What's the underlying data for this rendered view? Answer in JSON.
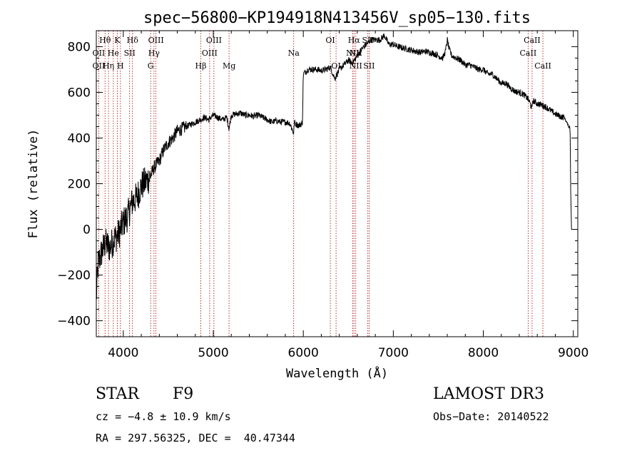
{
  "chart_data": {
    "type": "line",
    "title": "spec−56800−KP194918N413456V_sp05−130.fits",
    "xlabel": "Wavelength (Å)",
    "ylabel": "Flux (relative)",
    "xlim": [
      3700,
      9050
    ],
    "ylim": [
      -470,
      870
    ],
    "xticks": [
      4000,
      5000,
      6000,
      7000,
      8000,
      9000
    ],
    "yticks": [
      -400,
      -200,
      0,
      200,
      400,
      600,
      800
    ],
    "grid": false,
    "line_color": "#000000",
    "marker_color": "#aa0000",
    "spectrum_anchors": {
      "x": [
        3700,
        3720,
        3760,
        3800,
        3850,
        3900,
        3950,
        4000,
        4050,
        4100,
        4150,
        4200,
        4250,
        4300,
        4340,
        4400,
        4450,
        4500,
        4550,
        4600,
        4650,
        4700,
        4750,
        4800,
        4861,
        4900,
        4950,
        5000,
        5050,
        5100,
        5150,
        5175,
        5200,
        5250,
        5300,
        5350,
        5400,
        5450,
        5500,
        5550,
        5600,
        5650,
        5700,
        5750,
        5800,
        5850,
        5893,
        5900,
        5920,
        5950,
        5990,
        6000,
        6050,
        6100,
        6150,
        6200,
        6250,
        6300,
        6350,
        6400,
        6450,
        6500,
        6550,
        6600,
        6650,
        6700,
        6750,
        6800,
        6850,
        6880,
        6900,
        6950,
        7000,
        7050,
        7100,
        7150,
        7200,
        7250,
        7300,
        7350,
        7400,
        7450,
        7500,
        7550,
        7580,
        7600,
        7620,
        7650,
        7700,
        7750,
        7800,
        7850,
        7900,
        7950,
        8000,
        8050,
        8100,
        8150,
        8200,
        8250,
        8300,
        8350,
        8400,
        8450,
        8500,
        8542,
        8550,
        8600,
        8650,
        8700,
        8750,
        8800,
        8850,
        8900,
        8950,
        8960,
        8965,
        8970,
        8980
      ],
      "y": [
        -300,
        -150,
        -100,
        -60,
        -80,
        -40,
        -20,
        30,
        60,
        120,
        140,
        190,
        210,
        230,
        270,
        300,
        350,
        380,
        400,
        430,
        440,
        450,
        460,
        470,
        480,
        490,
        480,
        500,
        490,
        480,
        490,
        440,
        500,
        505,
        510,
        500,
        500,
        495,
        500,
        490,
        480,
        470,
        475,
        470,
        470,
        465,
        420,
        470,
        460,
        455,
        465,
        680,
        700,
        700,
        700,
        695,
        700,
        710,
        660,
        700,
        720,
        740,
        730,
        760,
        790,
        810,
        830,
        830,
        830,
        840,
        850,
        810,
        810,
        800,
        795,
        790,
        785,
        780,
        775,
        780,
        775,
        770,
        760,
        750,
        780,
        830,
        790,
        760,
        750,
        740,
        720,
        720,
        710,
        700,
        700,
        680,
        680,
        660,
        640,
        640,
        620,
        605,
        600,
        590,
        570,
        530,
        565,
        550,
        545,
        535,
        520,
        505,
        495,
        490,
        450,
        450,
        420,
        200,
        0
      ]
    },
    "lines_top": [
      {
        "label": "Hθ",
        "x": 3797
      },
      {
        "label": "K",
        "x": 3934
      },
      {
        "label": "Hδ",
        "x": 4102
      },
      {
        "label": "OIII",
        "x": 4363
      },
      {
        "label": "OIII",
        "x": 5007
      },
      {
        "label": "OI",
        "x": 6300
      },
      {
        "label": "Hα",
        "x": 6563
      },
      {
        "label": "SII",
        "x": 6717
      },
      {
        "label": "CaII",
        "x": 8542
      }
    ],
    "lines_mid": [
      {
        "label": "OII",
        "x": 3727
      },
      {
        "label": "He",
        "x": 3889
      },
      {
        "label": "SII",
        "x": 4070
      },
      {
        "label": "Hγ",
        "x": 4341
      },
      {
        "label": "OIII",
        "x": 4959
      },
      {
        "label": "Na",
        "x": 5893
      },
      {
        "label": "NII",
        "x": 6548
      },
      {
        "label": "NII",
        "x": 6583
      },
      {
        "label": "CaII",
        "x": 8498
      }
    ],
    "lines_low": [
      {
        "label": "OII",
        "x": 3727
      },
      {
        "label": "Hη",
        "x": 3835
      },
      {
        "label": "H",
        "x": 3968
      },
      {
        "label": "G",
        "x": 4304
      },
      {
        "label": "Hβ",
        "x": 4861
      },
      {
        "label": "Mg",
        "x": 5175
      },
      {
        "label": "OI",
        "x": 6364
      },
      {
        "label": "NII",
        "x": 6583
      },
      {
        "label": "SII",
        "x": 6731
      },
      {
        "label": "CaII",
        "x": 8662
      }
    ]
  },
  "info": {
    "object_class": "STAR",
    "subclass": "F9",
    "survey": "LAMOST DR3",
    "redshift": "cz = −4.8 ± 10.9 km/s",
    "obs_date": "Obs−Date: 20140522",
    "coords": "RA = 297.56325, DEC =  40.47344"
  }
}
